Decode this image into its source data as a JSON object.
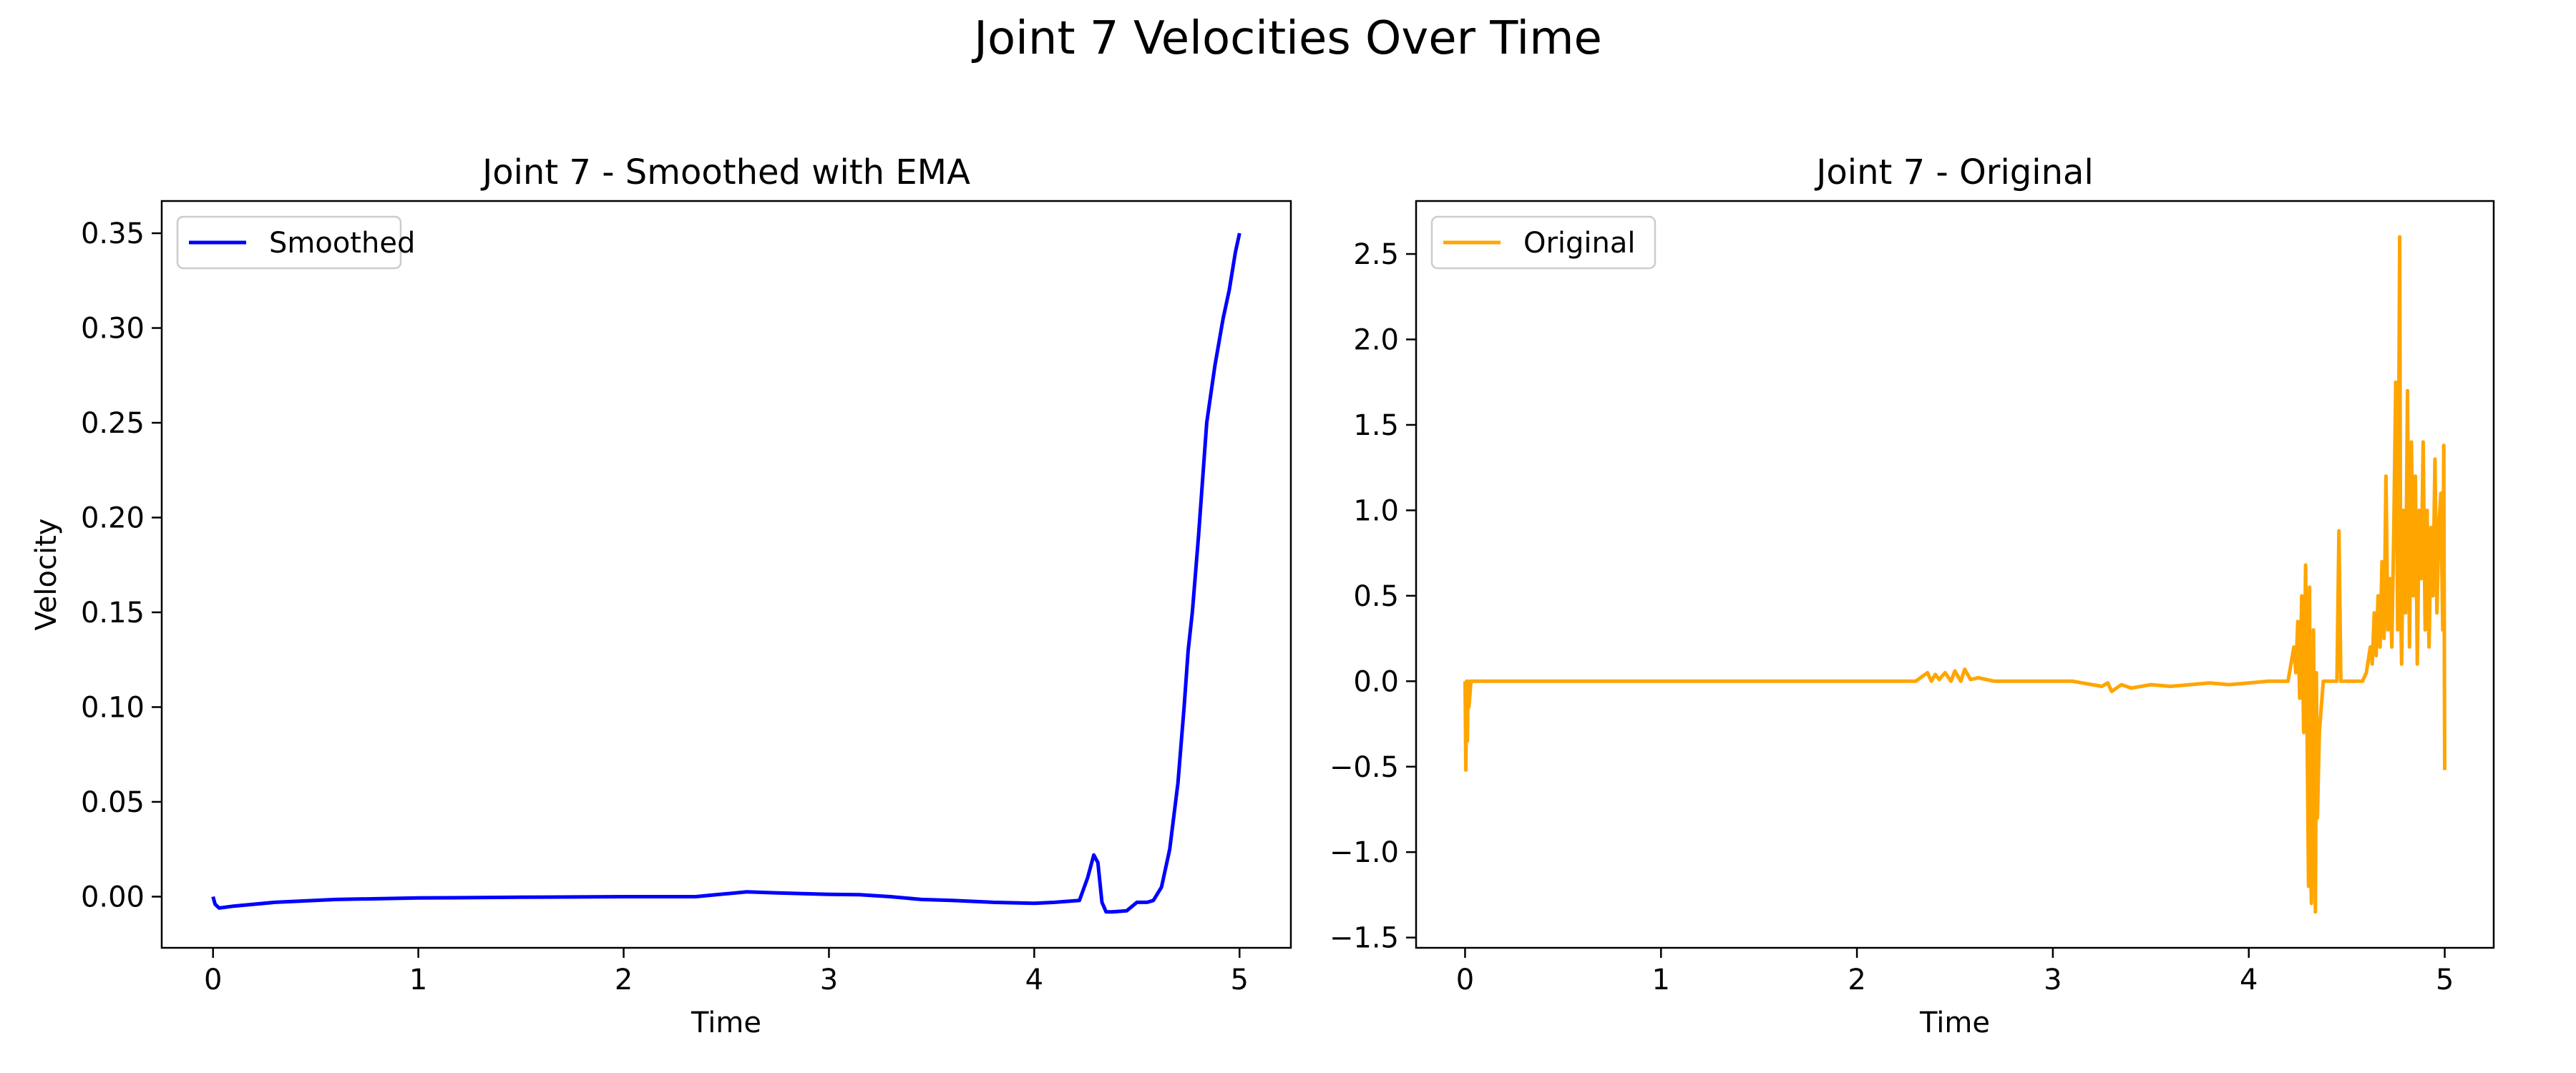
{
  "figure": {
    "suptitle": "Joint 7 Velocities Over Time"
  },
  "chart_data": [
    {
      "type": "line",
      "title": "Joint 7 - Smoothed with EMA",
      "xlabel": "Time",
      "ylabel": "Velocity",
      "xlim": [
        -0.25,
        5.25
      ],
      "ylim": [
        -0.027,
        0.367
      ],
      "xticks": [
        0,
        1,
        2,
        3,
        4,
        5
      ],
      "yticks": [
        0.0,
        0.05,
        0.1,
        0.15,
        0.2,
        0.25,
        0.3,
        0.35
      ],
      "ytick_labels": [
        "0.00",
        "0.05",
        "0.10",
        "0.15",
        "0.20",
        "0.25",
        "0.30",
        "0.35"
      ],
      "legend_position": "upper-left",
      "grid": false,
      "series": [
        {
          "name": "Smoothed",
          "color": "#0000ff",
          "x": [
            0,
            0.01,
            0.03,
            0.1,
            0.3,
            0.6,
            1.0,
            1.5,
            2.0,
            2.35,
            2.45,
            2.6,
            2.75,
            3.0,
            3.15,
            3.3,
            3.45,
            3.6,
            3.8,
            4.0,
            4.1,
            4.22,
            4.26,
            4.29,
            4.31,
            4.33,
            4.35,
            4.38,
            4.45,
            4.5,
            4.55,
            4.58,
            4.62,
            4.66,
            4.7,
            4.73,
            4.75,
            4.77,
            4.8,
            4.84,
            4.88,
            4.92,
            4.95,
            4.98,
            5.0
          ],
          "y": [
            0.0,
            -0.004,
            -0.006,
            -0.005,
            -0.003,
            -0.0015,
            -0.0007,
            -0.0003,
            0.0,
            0.0,
            0.001,
            0.0025,
            0.002,
            0.0012,
            0.001,
            0.0,
            -0.0015,
            -0.002,
            -0.003,
            -0.0035,
            -0.003,
            -0.002,
            0.01,
            0.022,
            0.018,
            -0.003,
            -0.008,
            -0.008,
            -0.0075,
            -0.003,
            -0.003,
            -0.002,
            0.005,
            0.025,
            0.06,
            0.1,
            0.13,
            0.15,
            0.19,
            0.25,
            0.28,
            0.305,
            0.32,
            0.34,
            0.35
          ]
        }
      ]
    },
    {
      "type": "line",
      "title": "Joint 7 - Original",
      "xlabel": "Time",
      "ylabel": "",
      "xlim": [
        -0.25,
        5.25
      ],
      "ylim": [
        -1.56,
        2.81
      ],
      "xticks": [
        0,
        1,
        2,
        3,
        4,
        5
      ],
      "yticks": [
        -1.5,
        -1.0,
        -0.5,
        0.0,
        0.5,
        1.0,
        1.5,
        2.0,
        2.5
      ],
      "ytick_labels": [
        "−1.5",
        "−1.0",
        "−0.5",
        "0.0",
        "0.5",
        "1.0",
        "1.5",
        "2.0",
        "2.5"
      ],
      "legend_position": "upper-left",
      "grid": false,
      "series": [
        {
          "name": "Original",
          "color": "#ffa500",
          "x": [
            0,
            0.004,
            0.008,
            0.012,
            0.016,
            0.02,
            0.03,
            0.05,
            0.5,
            1.0,
            1.5,
            2.0,
            2.3,
            2.36,
            2.38,
            2.4,
            2.42,
            2.45,
            2.48,
            2.5,
            2.53,
            2.55,
            2.58,
            2.62,
            2.7,
            2.9,
            3.1,
            3.2,
            3.25,
            3.28,
            3.3,
            3.35,
            3.4,
            3.5,
            3.6,
            3.7,
            3.8,
            3.9,
            4.0,
            4.1,
            4.2,
            4.23,
            4.24,
            4.25,
            4.26,
            4.27,
            4.28,
            4.29,
            4.3,
            4.305,
            4.31,
            4.315,
            4.32,
            4.33,
            4.34,
            4.345,
            4.35,
            4.36,
            4.38,
            4.4,
            4.45,
            4.46,
            4.47,
            4.48,
            4.5,
            4.52,
            4.55,
            4.58,
            4.6,
            4.62,
            4.63,
            4.64,
            4.65,
            4.66,
            4.67,
            4.68,
            4.69,
            4.7,
            4.71,
            4.72,
            4.73,
            4.74,
            4.75,
            4.76,
            4.77,
            4.775,
            4.78,
            4.79,
            4.8,
            4.81,
            4.82,
            4.83,
            4.84,
            4.85,
            4.86,
            4.87,
            4.88,
            4.89,
            4.9,
            4.91,
            4.92,
            4.93,
            4.94,
            4.95,
            4.96,
            4.97,
            4.98,
            4.99,
            4.995,
            5.0
          ],
          "y": [
            0.0,
            -0.52,
            0.0,
            -0.35,
            0.0,
            -0.15,
            0.0,
            0.0,
            0.0,
            0.0,
            0.0,
            0.0,
            0.0,
            0.05,
            0.0,
            0.04,
            0.01,
            0.05,
            0.0,
            0.06,
            0.0,
            0.07,
            0.01,
            0.02,
            0.0,
            0.0,
            0.0,
            -0.02,
            -0.03,
            -0.01,
            -0.06,
            -0.02,
            -0.04,
            -0.02,
            -0.03,
            -0.02,
            -0.01,
            -0.02,
            -0.01,
            0.0,
            0.0,
            0.2,
            0.05,
            0.35,
            -0.1,
            0.5,
            -0.3,
            0.68,
            -0.6,
            -1.2,
            0.55,
            -1.0,
            -1.3,
            0.3,
            -1.35,
            0.05,
            -0.8,
            -0.3,
            0.0,
            0.0,
            0.0,
            0.88,
            0.0,
            0.0,
            0.0,
            0.0,
            0.0,
            0.0,
            0.05,
            0.2,
            0.1,
            0.4,
            0.15,
            0.5,
            0.2,
            0.7,
            0.25,
            1.2,
            0.3,
            0.6,
            0.2,
            0.9,
            1.75,
            0.3,
            2.6,
            0.5,
            0.1,
            1.0,
            0.4,
            1.7,
            0.2,
            1.4,
            0.5,
            1.2,
            0.1,
            1.0,
            0.6,
            1.4,
            0.3,
            1.0,
            0.2,
            0.9,
            0.5,
            1.3,
            0.4,
            0.9,
            1.1,
            0.3,
            1.38,
            -0.52
          ]
        }
      ]
    }
  ]
}
